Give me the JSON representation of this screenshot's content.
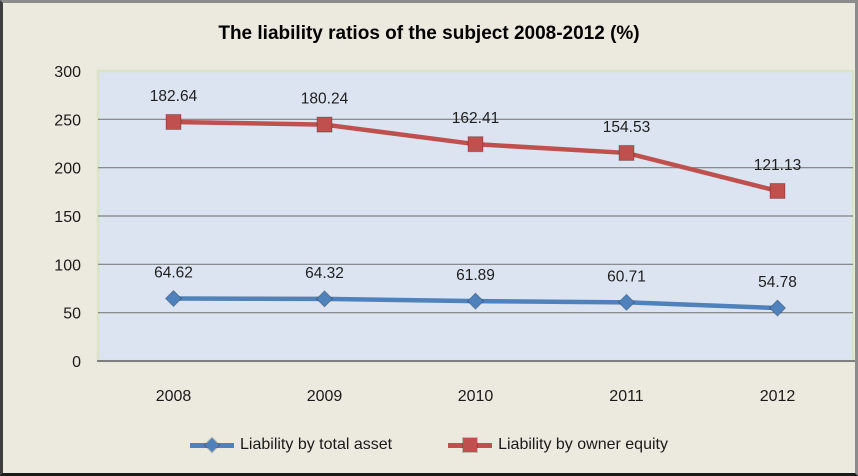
{
  "frame": {
    "background": "#ECE9DE",
    "plot_background": "#DBE4F0",
    "plot_border": "#D9E5C3",
    "grid_color": "#7F7F7F",
    "axis_line_color": "#7F7F7F",
    "axis_text_color": "#1A1A1A",
    "data_label_color": "#1F1F1F"
  },
  "chart_data": {
    "type": "line",
    "title": "The liability ratios of the subject 2008-2012 (%)",
    "categories": [
      "2008",
      "2009",
      "2010",
      "2011",
      "2012"
    ],
    "series": [
      {
        "name": "Liability by total asset",
        "color": "#4F81BD",
        "marker": "diamond",
        "values": [
          64.62,
          64.32,
          61.89,
          60.71,
          54.78
        ]
      },
      {
        "name": "Liability by owner equity",
        "color": "#C0504D",
        "marker": "square",
        "values": [
          182.64,
          180.24,
          162.41,
          154.53,
          121.13
        ]
      }
    ],
    "stacked": true,
    "data_labels": true,
    "grid": true,
    "legend_position": "bottom",
    "xlabel": "",
    "ylabel": "",
    "y_axis": {
      "min": 0,
      "max": 300,
      "step": 50
    }
  }
}
